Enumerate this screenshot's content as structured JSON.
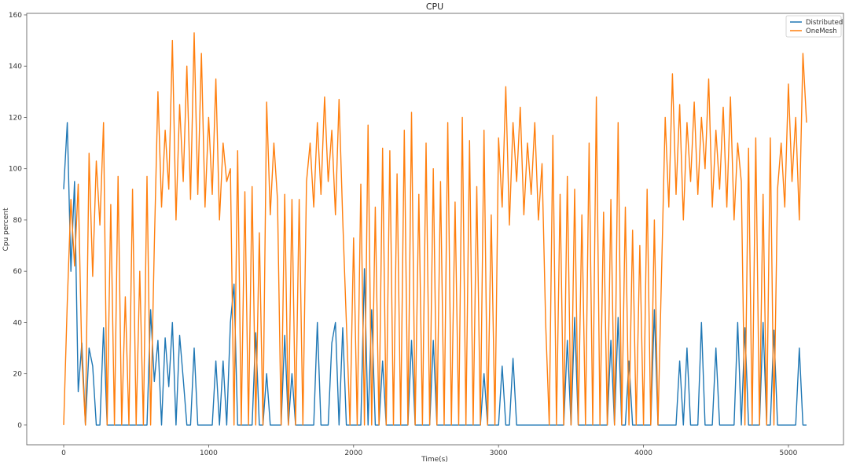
{
  "chart_data": {
    "type": "line",
    "title": "CPU",
    "xlabel": "Time(s)",
    "ylabel": "Cpu percent",
    "xlim": [
      -255,
      5380
    ],
    "ylim": [
      -7.7,
      160.6
    ],
    "xticks": [
      0,
      1000,
      2000,
      3000,
      4000,
      5000
    ],
    "yticks": [
      0,
      20,
      40,
      60,
      80,
      100,
      120,
      140,
      160
    ],
    "grid": false,
    "legend_position": "top-right",
    "x_start": 0,
    "x_step": 25,
    "series": [
      {
        "name": "Distributed",
        "color": "#1f77b4",
        "values": [
          92,
          118,
          60,
          95,
          13,
          32,
          0,
          30,
          23,
          0,
          0,
          38,
          0,
          0,
          0,
          0,
          0,
          0,
          0,
          0,
          0,
          0,
          0,
          0,
          45,
          17,
          33,
          0,
          34,
          15,
          40,
          0,
          35,
          18,
          0,
          0,
          30,
          0,
          0,
          0,
          0,
          0,
          25,
          0,
          25,
          0,
          40,
          55,
          0,
          0,
          0,
          0,
          0,
          36,
          0,
          0,
          20,
          0,
          0,
          0,
          0,
          35,
          0,
          20,
          0,
          0,
          0,
          0,
          0,
          0,
          40,
          0,
          0,
          0,
          32,
          40,
          0,
          38,
          0,
          0,
          0,
          0,
          0,
          61,
          0,
          45,
          0,
          0,
          25,
          0,
          0,
          0,
          0,
          0,
          0,
          0,
          33,
          0,
          0,
          0,
          0,
          0,
          33,
          0,
          0,
          0,
          0,
          0,
          0,
          0,
          0,
          0,
          0,
          0,
          0,
          0,
          20,
          0,
          0,
          0,
          0,
          23,
          0,
          0,
          26,
          0,
          0,
          0,
          0,
          0,
          0,
          0,
          0,
          0,
          0,
          0,
          0,
          0,
          0,
          33,
          0,
          42,
          0,
          0,
          0,
          0,
          0,
          0,
          0,
          0,
          0,
          33,
          0,
          42,
          0,
          0,
          25,
          0,
          0,
          0,
          0,
          0,
          0,
          45,
          0,
          0,
          0,
          0,
          0,
          0,
          25,
          0,
          30,
          0,
          0,
          0,
          40,
          0,
          0,
          0,
          30,
          0,
          0,
          0,
          0,
          0,
          40,
          0,
          38,
          0,
          0,
          0,
          0,
          40,
          0,
          0,
          37,
          0,
          0,
          0,
          0,
          0,
          0,
          30,
          0,
          0
        ]
      },
      {
        "name": "OneMesh",
        "color": "#ff7f0e",
        "values": [
          0,
          48,
          88,
          62,
          94,
          26,
          0,
          106,
          58,
          103,
          78,
          118,
          0,
          86,
          0,
          97,
          0,
          50,
          0,
          92,
          0,
          60,
          0,
          97,
          0,
          70,
          130,
          85,
          115,
          92,
          150,
          80,
          125,
          95,
          140,
          88,
          153,
          90,
          145,
          85,
          120,
          90,
          135,
          80,
          110,
          95,
          100,
          0,
          107,
          0,
          91,
          0,
          93,
          0,
          75,
          0,
          126,
          82,
          110,
          88,
          0,
          90,
          0,
          88,
          0,
          88,
          0,
          95,
          110,
          85,
          118,
          90,
          128,
          95,
          115,
          82,
          127,
          80,
          40,
          0,
          73,
          0,
          94,
          0,
          117,
          0,
          85,
          0,
          108,
          0,
          107,
          0,
          98,
          0,
          115,
          0,
          122,
          0,
          90,
          0,
          110,
          0,
          100,
          0,
          95,
          0,
          118,
          0,
          87,
          0,
          120,
          0,
          111,
          0,
          93,
          0,
          115,
          0,
          82,
          0,
          112,
          85,
          132,
          78,
          118,
          95,
          124,
          82,
          110,
          90,
          118,
          80,
          102,
          40,
          0,
          113,
          0,
          90,
          0,
          97,
          0,
          92,
          0,
          82,
          0,
          110,
          0,
          128,
          0,
          83,
          0,
          88,
          0,
          118,
          0,
          85,
          0,
          76,
          0,
          70,
          0,
          92,
          0,
          80,
          0,
          60,
          120,
          85,
          137,
          90,
          125,
          80,
          118,
          95,
          126,
          90,
          120,
          100,
          135,
          85,
          115,
          92,
          124,
          85,
          128,
          80,
          110,
          95,
          0,
          108,
          0,
          112,
          0,
          90,
          0,
          112,
          0,
          92,
          110,
          85,
          133,
          95,
          120,
          80,
          145,
          118
        ]
      }
    ]
  }
}
